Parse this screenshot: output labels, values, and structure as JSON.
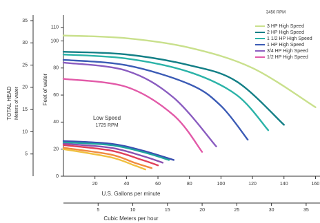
{
  "chart_data": {
    "type": "line",
    "y_title": "TOTAL HEAD",
    "y2_title": "Meters of water",
    "y_subtitle": "Feet of water",
    "x_title": "U.S. Gallons per minute",
    "x2_title": "Cubic Meters per hour",
    "legend_title": "3450 RPM",
    "annotation": [
      "Low Speed",
      "1725 RPM"
    ],
    "legend": "top-right",
    "xlim": [
      0,
      162
    ],
    "xticks": [
      20,
      40,
      60,
      80,
      100,
      120,
      140,
      160
    ],
    "x2lim": [
      0,
      36.8
    ],
    "x2ticks": [
      5,
      10,
      15,
      20,
      25,
      30,
      35
    ],
    "ylim": [
      0,
      115
    ],
    "yticks": [
      0,
      20,
      40,
      60,
      80,
      100,
      110
    ],
    "y2lim": [
      0,
      35
    ],
    "y2ticks": [
      5,
      10,
      15,
      20,
      25,
      30,
      35
    ],
    "series": [
      {
        "name": "3 HP   High Speed",
        "color": "#c9e08c",
        "x": [
          0,
          40,
          80,
          120,
          160
        ],
        "values": [
          104,
          102,
          95,
          80,
          51
        ]
      },
      {
        "name": "2 HP   High Speed",
        "color": "#137f86",
        "x": [
          0,
          40,
          80,
          110,
          140
        ],
        "values": [
          92,
          90,
          82,
          70,
          38
        ]
      },
      {
        "name": "1 1/2 HP  High Speed",
        "color": "#2bb3a8",
        "x": [
          0,
          40,
          80,
          110,
          130
        ],
        "values": [
          90,
          87,
          77,
          60,
          34
        ]
      },
      {
        "name": "1 HP   High Speed",
        "color": "#3b5bb5",
        "x": [
          0,
          40,
          80,
          100,
          117
        ],
        "values": [
          86,
          82,
          68,
          52,
          27
        ]
      },
      {
        "name": "3/4 HP  High Speed",
        "color": "#8a5cc0",
        "x": [
          0,
          40,
          70,
          97
        ],
        "values": [
          84,
          78,
          58,
          22
        ]
      },
      {
        "name": "1/2 HP  High Speed",
        "color": "#e25aa8",
        "x": [
          0,
          40,
          70,
          88
        ],
        "values": [
          72,
          66,
          45,
          18
        ]
      },
      {
        "color": "#3a4fb0",
        "x": [
          0,
          30,
          50,
          70
        ],
        "values": [
          26,
          24,
          19,
          12
        ]
      },
      {
        "color": "#1fa5a0",
        "x": [
          0,
          30,
          50,
          67
        ],
        "values": [
          25,
          23,
          18,
          12
        ]
      },
      {
        "color": "#8a50b0",
        "x": [
          0,
          30,
          50,
          63
        ],
        "values": [
          24,
          21,
          15,
          10
        ]
      },
      {
        "color": "#e0405a",
        "x": [
          0,
          30,
          50,
          60
        ],
        "values": [
          23,
          19,
          12,
          8
        ]
      },
      {
        "color": "#f08a40",
        "x": [
          0,
          30,
          45,
          56
        ],
        "values": [
          21,
          16,
          10,
          6
        ]
      },
      {
        "color": "#f0c040",
        "x": [
          0,
          30,
          45,
          52
        ],
        "values": [
          20,
          14,
          8,
          5
        ]
      }
    ]
  }
}
